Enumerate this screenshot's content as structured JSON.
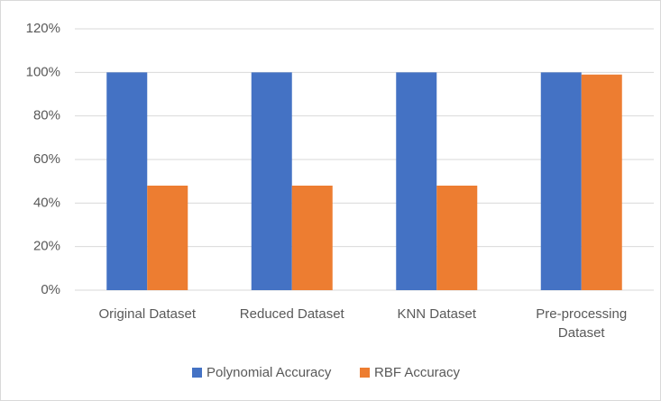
{
  "chart_data": {
    "type": "bar",
    "categories": [
      "Original Dataset",
      "Reduced Dataset",
      "KNN Dataset",
      "Pre-processing Dataset"
    ],
    "series": [
      {
        "name": "Polynomial Accuracy",
        "color": "#4472c4",
        "values": [
          100,
          100,
          100,
          100
        ]
      },
      {
        "name": "RBF Accuracy",
        "color": "#ed7d31",
        "values": [
          48,
          48,
          48,
          99
        ]
      }
    ],
    "ylim": [
      0,
      120
    ],
    "yticks": [
      {
        "value": 0,
        "label": "0%"
      },
      {
        "value": 20,
        "label": "20%"
      },
      {
        "value": 40,
        "label": "40%"
      },
      {
        "value": 60,
        "label": "60%"
      },
      {
        "value": 80,
        "label": "80%"
      },
      {
        "value": 100,
        "label": "100%"
      },
      {
        "value": 120,
        "label": "120%"
      }
    ],
    "grid": true,
    "legend": "bottom"
  }
}
